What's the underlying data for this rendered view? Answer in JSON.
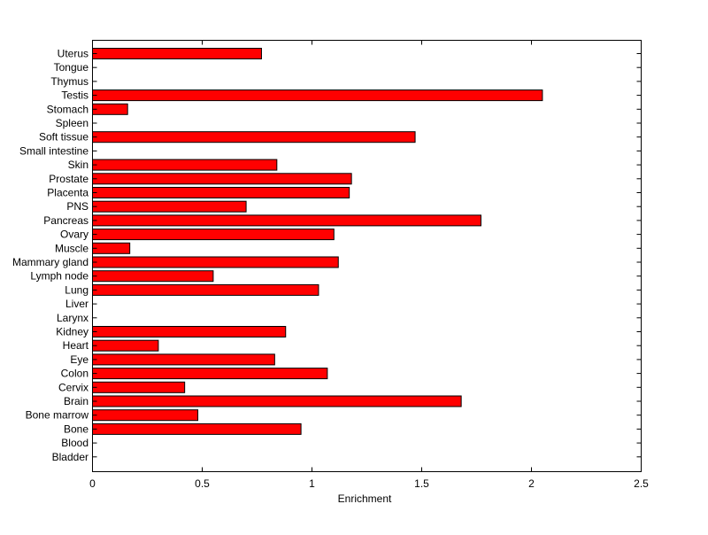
{
  "chart_data": {
    "type": "bar",
    "orientation": "horizontal",
    "xlabel": "Enrichment",
    "ylabel": "",
    "title": "",
    "xlim": [
      0,
      2.5
    ],
    "xticks": [
      "0",
      "0.5",
      "1",
      "1.5",
      "2",
      "2.5"
    ],
    "grid": false,
    "bar_color": "#ff0000",
    "categories": [
      "Uterus",
      "Tongue",
      "Thymus",
      "Testis",
      "Stomach",
      "Spleen",
      "Soft tissue",
      "Small intestine",
      "Skin",
      "Prostate",
      "Placenta",
      "PNS",
      "Pancreas",
      "Ovary",
      "Muscle",
      "Mammary gland",
      "Lymph node",
      "Lung",
      "Liver",
      "Larynx",
      "Kidney",
      "Heart",
      "Eye",
      "Colon",
      "Cervix",
      "Brain",
      "Bone marrow",
      "Bone",
      "Blood",
      "Bladder"
    ],
    "values": [
      0.77,
      0,
      0,
      2.05,
      0.16,
      0,
      1.47,
      0,
      0.84,
      1.18,
      1.17,
      0.7,
      1.77,
      1.1,
      0.17,
      1.12,
      0.55,
      1.03,
      0,
      0,
      0.88,
      0.3,
      0.83,
      1.07,
      0.42,
      1.68,
      0.48,
      0.95,
      0,
      0
    ]
  }
}
